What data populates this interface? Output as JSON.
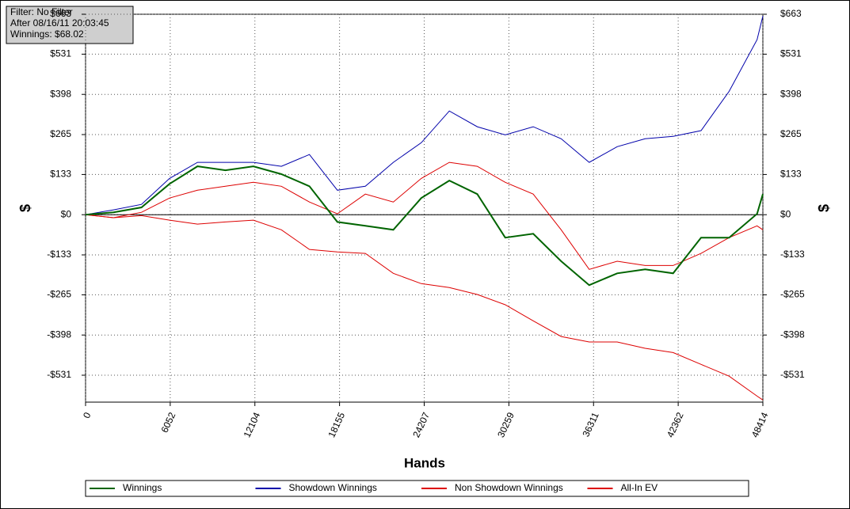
{
  "chart_data": {
    "type": "line",
    "info": [
      "Filter: No Filter",
      "After 08/16/11 20:03:45",
      "Winnings: $68.02"
    ],
    "xlabel": "Hands",
    "ylabel": "$",
    "y2label": "$",
    "x": [
      0,
      2000,
      4000,
      6000,
      8000,
      10000,
      12000,
      14000,
      16000,
      18000,
      20000,
      22000,
      24000,
      26000,
      28000,
      30000,
      32000,
      34000,
      36000,
      38000,
      40000,
      42000,
      44000,
      46000,
      48000,
      48414
    ],
    "series": [
      {
        "name": "Winnings",
        "color": "#006400",
        "values": [
          0,
          8,
          24,
          102,
          160,
          147,
          160,
          134,
          94,
          -24,
          -37,
          -50,
          55,
          113,
          68,
          -76,
          -63,
          -154,
          -233,
          -194,
          -181,
          -194,
          -76,
          -76,
          3,
          68
        ]
      },
      {
        "name": "Showdown Winnings",
        "color": "#0000aa",
        "values": [
          0,
          16,
          34,
          120,
          173,
          173,
          173,
          160,
          199,
          81,
          94,
          173,
          238,
          343,
          291,
          264,
          291,
          251,
          173,
          225,
          251,
          259,
          278,
          408,
          579,
          657
        ]
      },
      {
        "name": "Non Showdown Winnings",
        "color": "#dd0000",
        "values": [
          0,
          -10,
          8,
          55,
          81,
          94,
          107,
          94,
          42,
          3,
          68,
          42,
          120,
          173,
          160,
          107,
          68,
          -50,
          -181,
          -154,
          -168,
          -168,
          -128,
          -76,
          -37,
          -50
        ]
      },
      {
        "name": "All-In EV",
        "color": "#dd0000",
        "values": [
          0,
          -10,
          -3,
          -18,
          -31,
          -24,
          -18,
          -50,
          -115,
          -123,
          -128,
          -194,
          -228,
          -241,
          -264,
          -298,
          -351,
          -403,
          -421,
          -421,
          -442,
          -456,
          -495,
          -534,
          -600,
          -613
        ]
      }
    ],
    "xlim": [
      0,
      48414
    ],
    "xticks": [
      0,
      6052,
      12104,
      18155,
      24207,
      30259,
      36311,
      42362,
      48414
    ],
    "ylim": [
      -620,
      663
    ],
    "yticks": [
      {
        "value": 663,
        "label": "$663"
      },
      {
        "value": 531,
        "label": "$531"
      },
      {
        "value": 398,
        "label": "$398"
      },
      {
        "value": 265,
        "label": "$265"
      },
      {
        "value": 133,
        "label": "$133"
      },
      {
        "value": 0,
        "label": "$0"
      },
      {
        "value": -133,
        "label": "-$133"
      },
      {
        "value": -265,
        "label": "-$265"
      },
      {
        "value": -398,
        "label": "-$398"
      },
      {
        "value": -531,
        "label": "-$531"
      }
    ],
    "y2lim": [
      -620,
      663
    ],
    "y2ticks": [
      {
        "value": 663,
        "label": "$663"
      },
      {
        "value": 531,
        "label": "$531"
      },
      {
        "value": 398,
        "label": "$398"
      },
      {
        "value": 265,
        "label": "$265"
      },
      {
        "value": 133,
        "label": "$133"
      },
      {
        "value": 0,
        "label": "$0"
      },
      {
        "value": -133,
        "label": "-$133"
      },
      {
        "value": -265,
        "label": "-$265"
      },
      {
        "value": -398,
        "label": "-$398"
      },
      {
        "value": -531,
        "label": "-$531"
      }
    ],
    "grid": true,
    "legend": "bottom"
  }
}
